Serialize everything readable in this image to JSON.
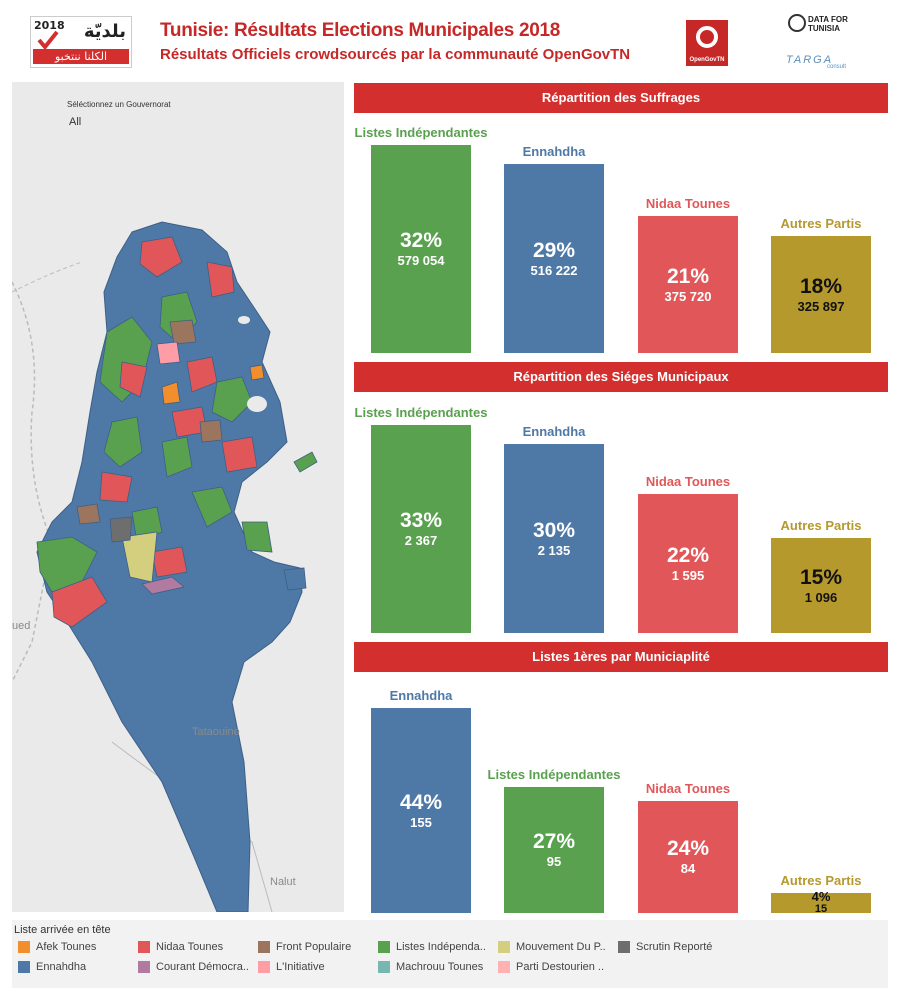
{
  "header": {
    "title": "Tunisie: Résultats Elections Municipales 2018",
    "subtitle": "Résultats Officiels crowdsourcés par la communauté OpenGovTN",
    "logo_year": "2018",
    "logo_arabic_top": "بلديّة",
    "logo_arabic_bottom": "الكلنا ننتخبو",
    "opengov_label": "OpenGovTN",
    "data_for_tunisia": "DATA FOR TUNISIA",
    "targa_label": "TARGA",
    "targa_sub": "consult"
  },
  "filter": {
    "label": "Séléctionnez un Gouvernorat",
    "value": "All"
  },
  "map": {
    "places": [
      "ued",
      "Tataouine",
      "Nalut"
    ]
  },
  "sections": [
    {
      "title": "Répartition des Suffrages",
      "bars": [
        {
          "name": "Listes Indépendantes",
          "pct": "32%",
          "value": "579 054",
          "share": 0.32,
          "color": "#59a14f"
        },
        {
          "name": "Ennahdha",
          "pct": "29%",
          "value": "516 222",
          "share": 0.29,
          "color": "#4e79a7"
        },
        {
          "name": "Nidaa Tounes",
          "pct": "21%",
          "value": "375 720",
          "share": 0.21,
          "color": "#e15759"
        },
        {
          "name": "Autres Partis",
          "pct": "18%",
          "value": "325 897",
          "share": 0.18,
          "color": "#b6992d"
        }
      ]
    },
    {
      "title": "Répartition des Siéges Municipaux",
      "bars": [
        {
          "name": "Listes Indépendantes",
          "pct": "33%",
          "value": "2 367",
          "share": 0.33,
          "color": "#59a14f"
        },
        {
          "name": "Ennahdha",
          "pct": "30%",
          "value": "2 135",
          "share": 0.3,
          "color": "#4e79a7"
        },
        {
          "name": "Nidaa Tounes",
          "pct": "22%",
          "value": "1 595",
          "share": 0.22,
          "color": "#e15759"
        },
        {
          "name": "Autres Partis",
          "pct": "15%",
          "value": "1 096",
          "share": 0.15,
          "color": "#b6992d"
        }
      ]
    },
    {
      "title": "Listes 1ères par Municiaplité",
      "bars": [
        {
          "name": "Ennahdha",
          "pct": "44%",
          "value": "155",
          "share": 0.44,
          "color": "#4e79a7"
        },
        {
          "name": "Listes Indépendantes",
          "pct": "27%",
          "value": "95",
          "share": 0.27,
          "color": "#59a14f"
        },
        {
          "name": "Nidaa Tounes",
          "pct": "24%",
          "value": "84",
          "share": 0.24,
          "color": "#e15759"
        },
        {
          "name": "Autres Partis",
          "pct": "4%",
          "value": "15",
          "share": 0.04,
          "color": "#b6992d"
        }
      ]
    }
  ],
  "legend": {
    "title": "Liste arrivée en tête",
    "items": [
      {
        "label": "Afek Tounes",
        "color": "#f28e2b"
      },
      {
        "label": "Ennahdha",
        "color": "#4e79a7"
      },
      {
        "label": "Nidaa Tounes",
        "color": "#e15759"
      },
      {
        "label": "Courant Démocra..",
        "color": "#b07aa1"
      },
      {
        "label": "Front Populaire",
        "color": "#9c755f"
      },
      {
        "label": "L'Initiative",
        "color": "#ff9da7"
      },
      {
        "label": "Listes Indépenda..",
        "color": "#59a14f"
      },
      {
        "label": "Machrouu Tounes",
        "color": "#76b7b2"
      },
      {
        "label": "Mouvement Du P..",
        "color": "#d4cf7f"
      },
      {
        "label": "Parti Destourien ..",
        "color": "#ffb1b3"
      },
      {
        "label": "Scrutin Reporté",
        "color": "#6e6e6e"
      }
    ]
  }
}
